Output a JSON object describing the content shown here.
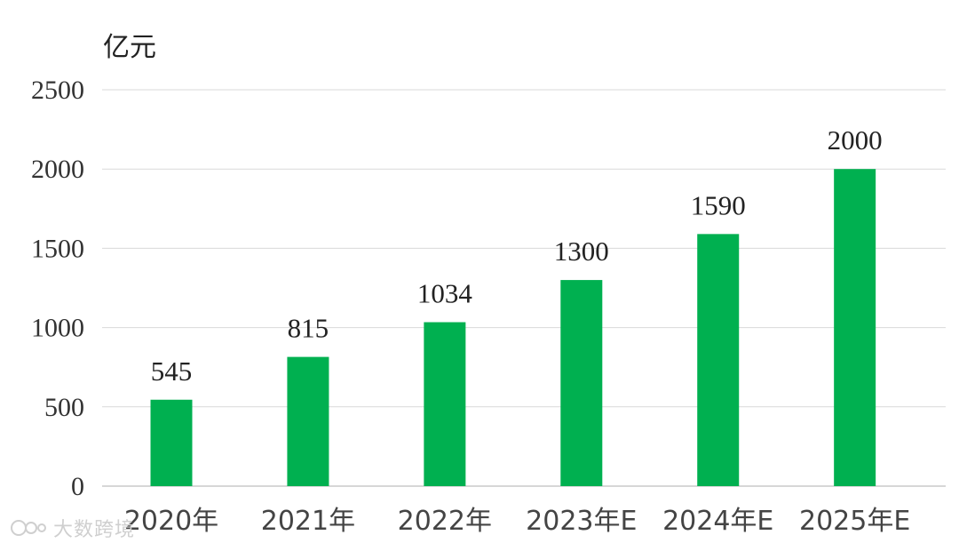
{
  "chart_data": {
    "type": "bar",
    "unit_label": "亿元",
    "categories": [
      "2020年",
      "2021年",
      "2022年",
      "2023年E",
      "2024年E",
      "2025年E"
    ],
    "values": [
      545,
      815,
      1034,
      1300,
      1590,
      2000
    ],
    "data_labels": [
      "545",
      "815",
      "1034",
      "1300",
      "1590",
      "2000"
    ],
    "yticks": [
      "0",
      "500",
      "1000",
      "1500",
      "2000",
      "2500"
    ],
    "ylim": [
      0,
      2500
    ],
    "grid": true,
    "bar_color": "#00b050"
  },
  "watermark": {
    "text": "大数跨境",
    "icon": "brand-logo-icon"
  }
}
